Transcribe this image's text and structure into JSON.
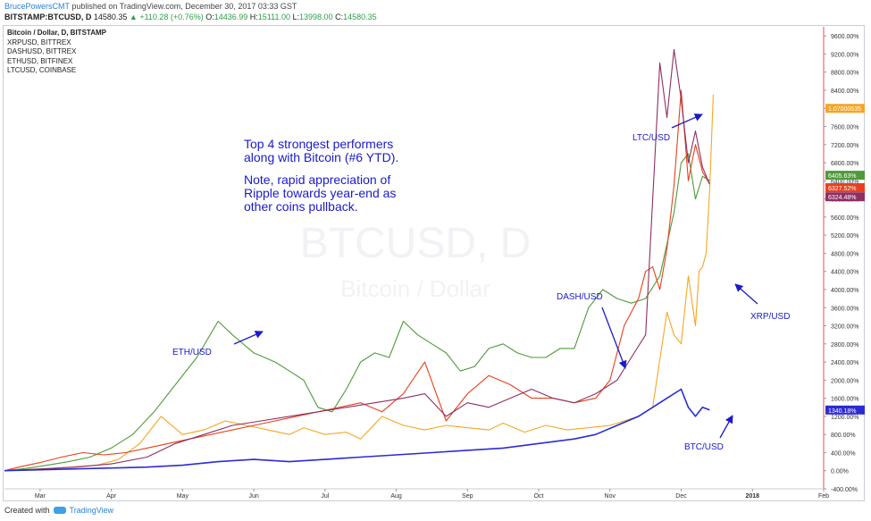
{
  "header": {
    "author": "BrucePowersCMT",
    "published": "published on TradingView.com, December 30, 2017 03:33 GST",
    "symbol": "BITSTAMP:BTCUSD, D",
    "last": "14580.35",
    "change": "▲ +110.28 (+0.76%)",
    "o_label": "O:",
    "o_val": "14436.99",
    "h_label": "H:",
    "h_val": "15111.00",
    "l_label": "L:",
    "l_val": "13998.00",
    "c_label": "C:",
    "c_val": "14580.35"
  },
  "legend": [
    "Bitcoin / Dollar, D, BITSTAMP",
    "XRPUSD, BITTREX",
    "DASHUSD, BITTREX",
    "ETHUSD, BITFINEX",
    "LTCUSD, COINBASE"
  ],
  "watermark": {
    "main": "BTCUSD, D",
    "sub": "Bitcoin / Dollar"
  },
  "annotations": {
    "note_lines": [
      "Top 4 strongest performers",
      "along with Bitcoin (#6 YTD).",
      "",
      "Note, rapid appreciation of",
      "Ripple towards year-end as",
      "other coins pullback."
    ],
    "eth": "ETH/USD",
    "dash": "DASH/USD",
    "ltc": "LTC/USD",
    "xrp": "XRP/USD",
    "btc": "BTC/USD"
  },
  "colors": {
    "btc": "#2b2bd6",
    "xrp": "#f5a623",
    "dash": "#e8401c",
    "eth": "#4f9a3a",
    "ltc": "#8e2f62",
    "annotation": "#1a1acc",
    "axis_line": "#e05050"
  },
  "footer": {
    "created": "Created with",
    "brand": "TradingView"
  },
  "chart_data": {
    "type": "line",
    "x_ticks": [
      "Mar",
      "Apr",
      "May",
      "Jun",
      "Jul",
      "Aug",
      "Sep",
      "Oct",
      "Nov",
      "Dec",
      "2018",
      "Feb"
    ],
    "ylim": [
      -400,
      9800
    ],
    "y_unit": "%",
    "y_ticks": [
      "9600.00%",
      "9200.00%",
      "8800.00%",
      "8400.00%",
      "8000.00%",
      "7600.00%",
      "7200.00%",
      "6800.00%",
      "6400.00%",
      "6000.00%",
      "5600.00%",
      "5200.00%",
      "4800.00%",
      "4400.00%",
      "4000.00%",
      "3600.00%",
      "3200.00%",
      "2800.00%",
      "2400.00%",
      "2000.00%",
      "1600.00%",
      "1200.00%",
      "800.00%",
      "400.00%",
      "0.00%",
      "-400.00%"
    ],
    "y_tick_values": [
      9600,
      9200,
      8800,
      8400,
      8000,
      7600,
      7200,
      6800,
      6400,
      6000,
      5600,
      5200,
      4800,
      4400,
      4000,
      3600,
      3200,
      2800,
      2400,
      2000,
      1600,
      1200,
      800,
      400,
      0,
      -400
    ],
    "grid": false,
    "series": [
      {
        "name": "XRPUSD, BITTREX",
        "key": "xrp",
        "last_label": "1.07000635",
        "x": [
          0,
          0.5,
          1,
          1.3,
          1.6,
          1.9,
          2.2,
          2.5,
          2.8,
          3.1,
          3.4,
          3.7,
          4.0,
          4.2,
          4.5,
          4.8,
          5.0,
          5.3,
          5.6,
          5.9,
          6.2,
          6.5,
          6.8,
          7.0,
          7.3,
          7.6,
          7.9,
          8.2,
          8.5,
          8.7,
          8.9,
          9.1,
          9.3,
          9.4,
          9.5,
          9.6,
          9.7,
          9.75,
          9.8,
          9.85,
          9.9,
          9.95
        ],
        "y": [
          0,
          30,
          90,
          120,
          250,
          600,
          1200,
          800,
          900,
          1100,
          1000,
          900,
          800,
          950,
          800,
          850,
          700,
          1200,
          1000,
          900,
          1000,
          950,
          900,
          1050,
          850,
          1000,
          900,
          950,
          1000,
          1100,
          1200,
          1400,
          3500,
          3000,
          2800,
          4300,
          3200,
          4400,
          4500,
          4800,
          6200,
          8300
        ]
      },
      {
        "name": "ETHUSD, BITFINEX",
        "key": "eth",
        "last_label": "6405.63%",
        "x": [
          0,
          0.3,
          0.6,
          0.9,
          1.2,
          1.5,
          1.8,
          2.1,
          2.4,
          2.7,
          3.0,
          3.2,
          3.5,
          3.8,
          4.0,
          4.2,
          4.4,
          4.6,
          4.8,
          5.0,
          5.2,
          5.4,
          5.6,
          5.8,
          6.0,
          6.2,
          6.4,
          6.6,
          6.8,
          7.0,
          7.2,
          7.4,
          7.6,
          7.8,
          8.0,
          8.2,
          8.4,
          8.6,
          8.8,
          9.0,
          9.2,
          9.4,
          9.5,
          9.6,
          9.7,
          9.8,
          9.9
        ],
        "y": [
          0,
          50,
          120,
          200,
          300,
          500,
          800,
          1300,
          1900,
          2500,
          3300,
          3000,
          2600,
          2400,
          2200,
          2000,
          1400,
          1300,
          1800,
          2400,
          2600,
          2500,
          3300,
          3000,
          2800,
          2600,
          2200,
          2300,
          2700,
          2800,
          2600,
          2500,
          2500,
          2700,
          2700,
          3600,
          4000,
          3800,
          3700,
          3800,
          4300,
          5700,
          6800,
          7000,
          6000,
          6500,
          6405
        ]
      },
      {
        "name": "DASHUSD, BITTREX",
        "key": "dash",
        "last_label": "6327.52%",
        "x": [
          0,
          0.2,
          0.5,
          0.8,
          1.1,
          1.4,
          1.7,
          2.0,
          2.3,
          2.6,
          2.9,
          3.2,
          3.5,
          3.8,
          4.1,
          4.4,
          4.7,
          5.0,
          5.3,
          5.6,
          5.9,
          6.2,
          6.5,
          6.8,
          7.1,
          7.4,
          7.7,
          8.0,
          8.3,
          8.5,
          8.7,
          8.9,
          9.0,
          9.1,
          9.2,
          9.3,
          9.4,
          9.5,
          9.6,
          9.7,
          9.8,
          9.9
        ],
        "y": [
          0,
          80,
          180,
          300,
          400,
          350,
          400,
          500,
          600,
          700,
          800,
          900,
          1000,
          1100,
          1200,
          1300,
          1400,
          1500,
          1300,
          1700,
          2400,
          1100,
          1700,
          2100,
          1900,
          1600,
          1600,
          1500,
          1600,
          2000,
          3200,
          3800,
          4400,
          4500,
          4000,
          4900,
          6300,
          8400,
          6400,
          7200,
          6600,
          6327
        ]
      },
      {
        "name": "LTCUSD, COINBASE",
        "key": "ltc",
        "last_label": "6324.48%",
        "x": [
          0,
          0.5,
          1.0,
          1.5,
          2.0,
          2.4,
          2.8,
          3.2,
          3.6,
          4.0,
          4.4,
          4.8,
          5.2,
          5.6,
          5.9,
          6.2,
          6.5,
          6.8,
          7.1,
          7.4,
          7.7,
          8.0,
          8.3,
          8.6,
          8.8,
          9.0,
          9.2,
          9.3,
          9.4,
          9.5,
          9.6,
          9.7,
          9.8,
          9.9
        ],
        "y": [
          0,
          40,
          80,
          150,
          300,
          600,
          800,
          1000,
          1100,
          1200,
          1300,
          1400,
          1500,
          1600,
          1700,
          1200,
          1500,
          1400,
          1600,
          1800,
          1600,
          1500,
          1700,
          2000,
          2500,
          3000,
          9000,
          7800,
          9300,
          8200,
          6800,
          7500,
          6700,
          6324
        ]
      },
      {
        "name": "Bitcoin / Dollar, D, BITSTAMP",
        "key": "btc",
        "last_label": "1340.18%",
        "x": [
          0,
          0.5,
          1.0,
          1.5,
          2.0,
          2.5,
          3.0,
          3.5,
          4.0,
          4.5,
          5.0,
          5.5,
          6.0,
          6.5,
          7.0,
          7.5,
          8.0,
          8.3,
          8.6,
          8.9,
          9.1,
          9.3,
          9.5,
          9.6,
          9.7,
          9.8,
          9.9
        ],
        "y": [
          0,
          20,
          40,
          60,
          80,
          120,
          200,
          250,
          200,
          250,
          300,
          350,
          400,
          450,
          500,
          600,
          700,
          800,
          1000,
          1200,
          1400,
          1600,
          1800,
          1400,
          1200,
          1400,
          1340
        ]
      }
    ]
  }
}
